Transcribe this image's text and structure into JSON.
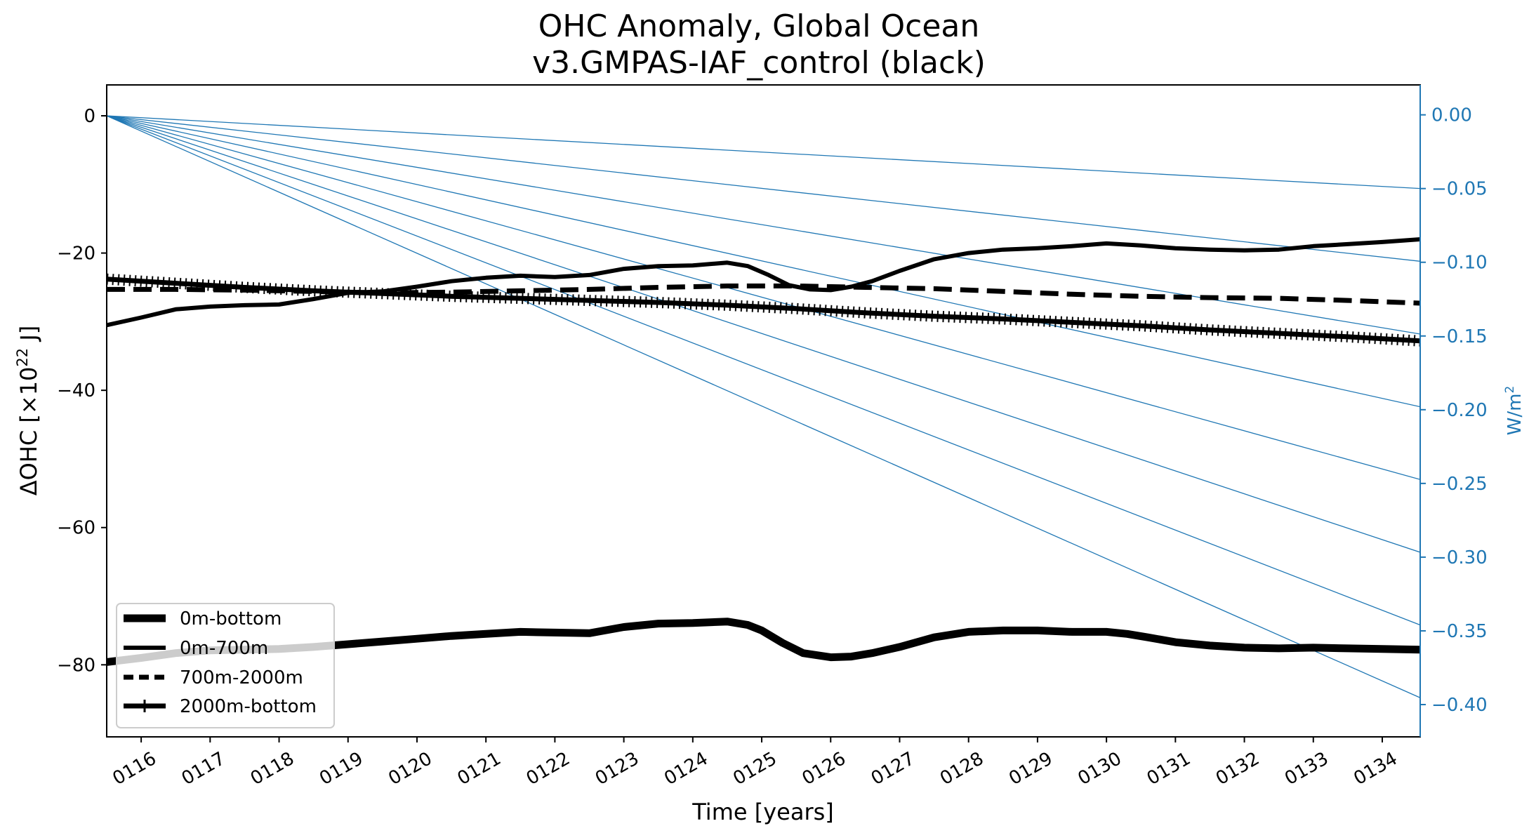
{
  "chart_data": {
    "type": "line",
    "title": "OHC Anomaly, Global Ocean",
    "subtitle": "v3.GMPAS-IAF_control (black)",
    "xlabel": "Time [years]",
    "ylabel_left": "ΔOHC [×10",
    "ylabel_left_exp": "22",
    "ylabel_left_unit": " J]",
    "ylabel_right": "W/m",
    "ylabel_right_exp": "2",
    "xlim": [
      115.5,
      134.55
    ],
    "ylim_left": [
      -90.5,
      4.5
    ],
    "ylim_right": [
      -0.4219,
      0.0203
    ],
    "x_ticks": [
      {
        "value": 116,
        "label": "0116"
      },
      {
        "value": 117,
        "label": "0117"
      },
      {
        "value": 118,
        "label": "0118"
      },
      {
        "value": 119,
        "label": "0119"
      },
      {
        "value": 120,
        "label": "0120"
      },
      {
        "value": 121,
        "label": "0121"
      },
      {
        "value": 122,
        "label": "0122"
      },
      {
        "value": 123,
        "label": "0123"
      },
      {
        "value": 124,
        "label": "0124"
      },
      {
        "value": 125,
        "label": "0125"
      },
      {
        "value": 126,
        "label": "0126"
      },
      {
        "value": 127,
        "label": "0127"
      },
      {
        "value": 128,
        "label": "0128"
      },
      {
        "value": 129,
        "label": "0129"
      },
      {
        "value": 130,
        "label": "0130"
      },
      {
        "value": 131,
        "label": "0131"
      },
      {
        "value": 132,
        "label": "0132"
      },
      {
        "value": 133,
        "label": "0133"
      },
      {
        "value": 134,
        "label": "0134"
      }
    ],
    "y_ticks_left": [
      {
        "value": 0,
        "label": "0"
      },
      {
        "value": -20,
        "label": "−20"
      },
      {
        "value": -40,
        "label": "−40"
      },
      {
        "value": -60,
        "label": "−60"
      },
      {
        "value": -80,
        "label": "−80"
      }
    ],
    "y_ticks_right": [
      {
        "value": 0.0,
        "label": "0.00"
      },
      {
        "value": -0.05,
        "label": "−0.05"
      },
      {
        "value": -0.1,
        "label": "−0.10"
      },
      {
        "value": -0.15,
        "label": "−0.15"
      },
      {
        "value": -0.2,
        "label": "−0.20"
      },
      {
        "value": -0.25,
        "label": "−0.25"
      },
      {
        "value": -0.3,
        "label": "−0.30"
      },
      {
        "value": -0.35,
        "label": "−0.35"
      },
      {
        "value": -0.4,
        "label": "−0.40"
      }
    ],
    "reference_lines": {
      "color": "#1f77b4",
      "origin": {
        "x": 115.5,
        "y": 0
      },
      "endpoints_at_right_edge": [
        -10.6,
        -21.2,
        -31.8,
        -42.4,
        -53.0,
        -63.6,
        -74.2,
        -84.8
      ]
    },
    "series": [
      {
        "name": "0m-bottom",
        "style": "solid",
        "linewidth": 11,
        "x": [
          115.5,
          116.0,
          116.5,
          117.0,
          117.5,
          118.0,
          118.5,
          119.0,
          119.5,
          120.0,
          120.5,
          121.0,
          121.5,
          122.0,
          122.5,
          123.0,
          123.5,
          124.0,
          124.5,
          124.8,
          125.0,
          125.3,
          125.6,
          126.0,
          126.3,
          126.6,
          127.0,
          127.5,
          128.0,
          128.5,
          129.0,
          129.5,
          130.0,
          130.3,
          130.6,
          131.0,
          131.5,
          132.0,
          132.5,
          133.0,
          133.5,
          134.0,
          134.55
        ],
        "y": [
          -79.6,
          -79.0,
          -78.3,
          -77.9,
          -77.8,
          -77.7,
          -77.4,
          -77.0,
          -76.6,
          -76.2,
          -75.8,
          -75.5,
          -75.2,
          -75.3,
          -75.4,
          -74.5,
          -74.0,
          -73.9,
          -73.7,
          -74.2,
          -75.0,
          -76.8,
          -78.3,
          -78.9,
          -78.8,
          -78.3,
          -77.4,
          -76.0,
          -75.2,
          -75.0,
          -75.0,
          -75.2,
          -75.2,
          -75.5,
          -76.0,
          -76.7,
          -77.2,
          -77.5,
          -77.6,
          -77.5,
          -77.6,
          -77.7,
          -77.8
        ]
      },
      {
        "name": "0m-700m",
        "style": "solid",
        "linewidth": 6,
        "x": [
          115.5,
          116.0,
          116.5,
          117.0,
          117.5,
          118.0,
          118.5,
          119.0,
          119.5,
          120.0,
          120.5,
          121.0,
          121.5,
          122.0,
          122.5,
          123.0,
          123.5,
          124.0,
          124.5,
          124.8,
          125.1,
          125.4,
          125.7,
          126.0,
          126.3,
          126.6,
          127.0,
          127.5,
          128.0,
          128.5,
          129.0,
          129.5,
          130.0,
          130.5,
          131.0,
          131.5,
          132.0,
          132.5,
          133.0,
          133.5,
          134.0,
          134.55
        ],
        "y": [
          -30.5,
          -29.4,
          -28.2,
          -27.8,
          -27.6,
          -27.5,
          -26.7,
          -25.8,
          -25.6,
          -24.9,
          -24.1,
          -23.6,
          -23.3,
          -23.5,
          -23.2,
          -22.3,
          -21.9,
          -21.8,
          -21.4,
          -21.9,
          -23.2,
          -24.7,
          -25.3,
          -25.4,
          -24.9,
          -24.1,
          -22.6,
          -20.9,
          -20.0,
          -19.5,
          -19.3,
          -19.0,
          -18.6,
          -18.9,
          -19.3,
          -19.5,
          -19.6,
          -19.5,
          -19.0,
          -18.7,
          -18.4,
          -18.0
        ]
      },
      {
        "name": "700m-2000m",
        "style": "dashed",
        "linewidth": 7,
        "x": [
          115.5,
          116.5,
          117.5,
          118.5,
          119.5,
          120.5,
          121.5,
          122.5,
          123.5,
          124.5,
          125.5,
          126.5,
          127.5,
          128.5,
          129.5,
          130.5,
          131.5,
          132.5,
          133.5,
          134.55
        ],
        "y": [
          -25.3,
          -25.3,
          -25.4,
          -25.6,
          -25.8,
          -25.7,
          -25.5,
          -25.3,
          -25.0,
          -24.8,
          -24.8,
          -25.0,
          -25.2,
          -25.6,
          -26.0,
          -26.3,
          -26.5,
          -26.6,
          -26.9,
          -27.3
        ]
      },
      {
        "name": "2000m-bottom",
        "style": "solid-plus",
        "linewidth": 7,
        "x": [
          115.5,
          116.5,
          117.5,
          118.5,
          119.5,
          120.5,
          121.5,
          122.5,
          123.5,
          124.5,
          125.5,
          126.5,
          127.5,
          128.5,
          129.5,
          130.5,
          131.5,
          132.5,
          133.5,
          134.55
        ],
        "y": [
          -23.8,
          -24.4,
          -25.0,
          -25.5,
          -25.9,
          -26.3,
          -26.6,
          -26.9,
          -27.2,
          -27.6,
          -28.1,
          -28.7,
          -29.2,
          -29.6,
          -30.1,
          -30.6,
          -31.2,
          -31.7,
          -32.2,
          -32.8
        ]
      }
    ],
    "legend": {
      "position": "lower-left",
      "entries": [
        "0m-bottom",
        "0m-700m",
        "700m-2000m",
        "2000m-bottom"
      ]
    }
  }
}
